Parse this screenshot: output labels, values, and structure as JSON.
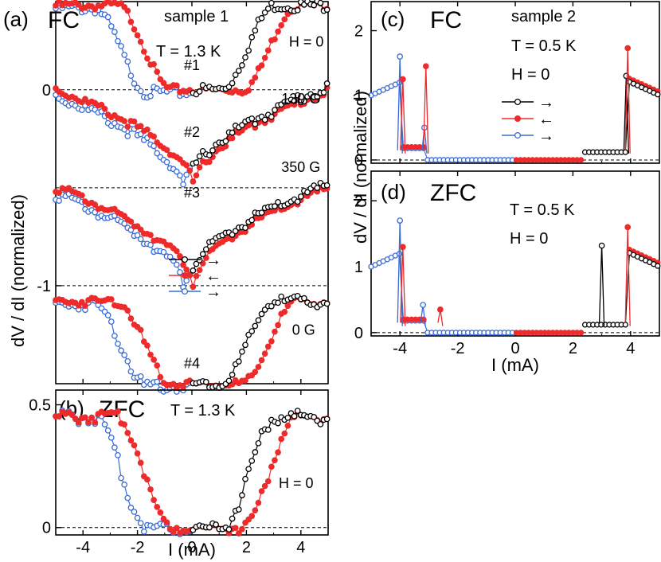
{
  "colors": {
    "black": "#000000",
    "red": "#ee2a2a",
    "blue": "#3a6bd6"
  },
  "shared": {
    "ylabel_left": "dV / dI  (normalized)",
    "ylabel_right": "dV / dI  (normalized)",
    "xlabel": "I (mA)"
  },
  "chart_data": [
    {
      "panel": "a",
      "type": "line",
      "title_letter": "(a)",
      "title": "FC",
      "sample": "sample 1",
      "temperature": "T = 1.3 K",
      "xlim": [
        -5,
        5
      ],
      "ylim": [
        -1.5,
        0.45
      ],
      "xticks": [
        -4,
        -2,
        0,
        2,
        4
      ],
      "yticks": [
        0,
        -1
      ],
      "ytick_labels": [
        "0",
        "-1"
      ],
      "legend": {
        "arrows": [
          "→",
          "←",
          "→"
        ],
        "placement": "center-right"
      },
      "curves": [
        {
          "name": "#1",
          "field": "H = 0",
          "offset": 0.0,
          "label_x": 0,
          "label_y": 0.1,
          "field_x": 4.2,
          "field_y": 0.22,
          "amp_l": 0.43,
          "amp_r": 0.43,
          "w0": 1.3,
          "w1": 2.1,
          "kind": "step"
        },
        {
          "name": "#2",
          "field": "130 G",
          "offset": -0.5,
          "label_x": 0,
          "label_y": -0.24,
          "field_x": 4.0,
          "field_y": -0.07,
          "amp_l": 0.5,
          "amp_r": 0.5,
          "kind": "cusp"
        },
        {
          "name": "#3",
          "field": "350 G",
          "offset": -1.0,
          "label_x": 0,
          "label_y": -0.55,
          "field_x": 4.0,
          "field_y": -0.42,
          "amp_l": 0.5,
          "amp_r": 0.5,
          "kind": "cusp"
        },
        {
          "name": "#4",
          "field": "0 G",
          "offset": -1.5,
          "label_x": 0,
          "label_y": -1.42,
          "field_x": 4.1,
          "field_y": -1.25,
          "amp_l": 0.42,
          "amp_r": 0.42,
          "w0": 1.3,
          "w1": 2.1,
          "kind": "step"
        }
      ],
      "baselines": [
        0,
        -0.5,
        -1.0,
        -1.5
      ],
      "series": [
        {
          "name": "sweep →",
          "color": "black",
          "arrow": "→"
        },
        {
          "name": "sweep ←",
          "color": "red",
          "arrow": "←"
        },
        {
          "name": "sweep →",
          "color": "blue",
          "arrow": "→"
        }
      ]
    },
    {
      "panel": "b",
      "type": "line",
      "title_letter": "(b)",
      "title": "ZFC",
      "temperature": "T = 1.3 K",
      "field": "H = 0",
      "xlim": [
        -5,
        5
      ],
      "ylim": [
        -0.03,
        0.56
      ],
      "xticks": [
        -4,
        -2,
        0,
        2,
        4
      ],
      "yticks": [
        0,
        0.5
      ],
      "ytick_labels": [
        "0",
        "0.5"
      ],
      "amp": 0.45,
      "w0": 1.3,
      "w1": 2.1
    },
    {
      "panel": "c",
      "type": "line",
      "title_letter": "(c)",
      "title": "FC",
      "sample": "sample 2",
      "temperature": "T = 0.5 K",
      "field": "H = 0",
      "xlim": [
        -5,
        5
      ],
      "ylim": [
        -0.05,
        2.45
      ],
      "xticks": [
        -4,
        -2,
        0,
        2,
        4
      ],
      "yticks": [
        0,
        1,
        2
      ],
      "ytick_labels": [
        "0",
        "1",
        "2"
      ],
      "legend": {
        "arrows": [
          "→",
          "←",
          "→"
        ],
        "placement": "center"
      },
      "spikes": [
        {
          "x": -4.0,
          "y": 1.6,
          "color": "blue"
        },
        {
          "x": -3.9,
          "y": 1.25,
          "color": "red"
        },
        {
          "x": -3.15,
          "y": 0.5,
          "color": "blue"
        },
        {
          "x": -3.1,
          "y": 1.45,
          "color": "red"
        },
        {
          "x": 3.85,
          "y": 1.3,
          "color": "black"
        },
        {
          "x": 3.9,
          "y": 1.73,
          "color": "red"
        }
      ]
    },
    {
      "panel": "d",
      "type": "line",
      "title_letter": "(d)",
      "title": "ZFC",
      "temperature": "T = 0.5 K",
      "field": "H = 0",
      "xlim": [
        -5,
        5
      ],
      "ylim": [
        -0.05,
        2.45
      ],
      "xticks": [
        -4,
        -2,
        0,
        2,
        4
      ],
      "xtick_labels": [
        "-4",
        "-2",
        "0",
        "2",
        "4"
      ],
      "yticks": [
        0,
        1,
        2
      ],
      "ytick_labels": [
        "0",
        "1",
        "2"
      ],
      "spikes": [
        {
          "x": -4.0,
          "y": 1.7,
          "color": "blue"
        },
        {
          "x": -3.9,
          "y": 1.3,
          "color": "red"
        },
        {
          "x": -3.2,
          "y": 0.42,
          "color": "blue"
        },
        {
          "x": -2.6,
          "y": 0.35,
          "color": "red"
        },
        {
          "x": 3.0,
          "y": 1.32,
          "color": "black"
        },
        {
          "x": 3.9,
          "y": 1.6,
          "color": "red"
        }
      ]
    }
  ]
}
